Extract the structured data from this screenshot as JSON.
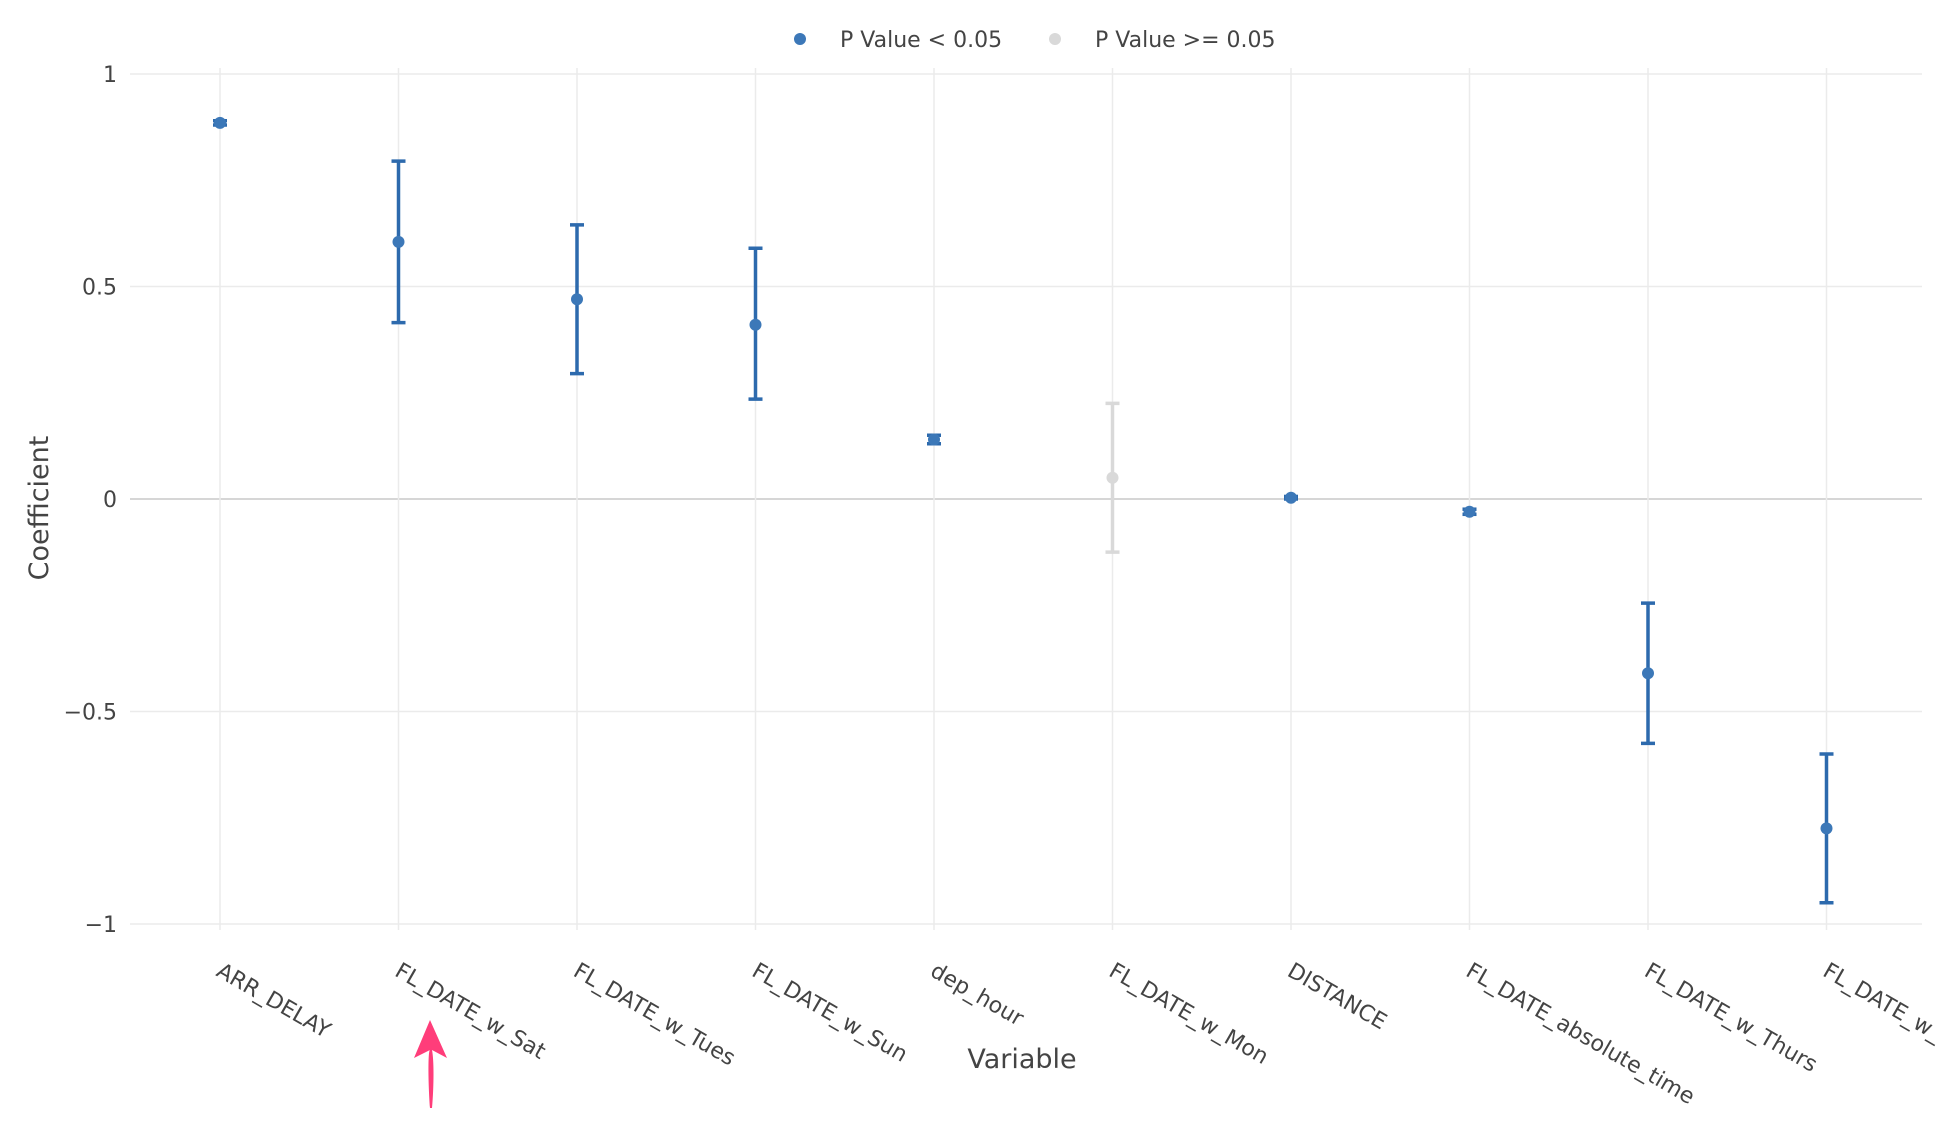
{
  "chart_data": {
    "type": "scatter",
    "xlabel": "Variable",
    "ylabel": "Coefficient",
    "ylim": [
      -1.05,
      1.02
    ],
    "yticks": [
      1,
      0.5,
      0,
      -0.5,
      -1
    ],
    "ytick_labels": [
      "1",
      "0.5",
      "0",
      "−0.5",
      "−1"
    ],
    "grid": true,
    "zero_line": true,
    "legend": {
      "position": "top-center",
      "entries": [
        {
          "label": "P Value < 0.05",
          "color": "#3c78b8"
        },
        {
          "label": "P Value >= 0.05",
          "color": "#d9d9d9"
        }
      ]
    },
    "categories": [
      "ARR_DELAY",
      "FL_DATE_w_Sat",
      "FL_DATE_w_Tues",
      "FL_DATE_w_Sun",
      "dep_hour",
      "FL_DATE_w_Mon",
      "DISTANCE",
      "FL_DATE_absolute_time",
      "FL_DATE_w_Thurs",
      "FL_DATE_w_"
    ],
    "points": [
      {
        "x": "ARR_DELAY",
        "y": 0.885,
        "low": 0.88,
        "high": 0.89,
        "significant": true
      },
      {
        "x": "FL_DATE_w_Sat",
        "y": 0.605,
        "low": 0.415,
        "high": 0.795,
        "significant": true
      },
      {
        "x": "FL_DATE_w_Tues",
        "y": 0.47,
        "low": 0.295,
        "high": 0.645,
        "significant": true
      },
      {
        "x": "FL_DATE_w_Sun",
        "y": 0.41,
        "low": 0.235,
        "high": 0.59,
        "significant": true
      },
      {
        "x": "dep_hour",
        "y": 0.14,
        "low": 0.13,
        "high": 0.15,
        "significant": true
      },
      {
        "x": "FL_DATE_w_Mon",
        "y": 0.05,
        "low": -0.125,
        "high": 0.225,
        "significant": false
      },
      {
        "x": "DISTANCE",
        "y": 0.003,
        "low": 0.0,
        "high": 0.006,
        "significant": true
      },
      {
        "x": "FL_DATE_absolute_time",
        "y": -0.03,
        "low": -0.036,
        "high": -0.024,
        "significant": true
      },
      {
        "x": "FL_DATE_w_Thurs",
        "y": -0.41,
        "low": -0.575,
        "high": -0.245,
        "significant": true
      },
      {
        "x": "FL_DATE_w_",
        "y": -0.775,
        "low": -0.95,
        "high": -0.6,
        "significant": true
      }
    ],
    "colors": {
      "significant_point": "#3c78b8",
      "significant_bar": "#2d6aad",
      "nonsignificant": "#d9d9d9",
      "grid": "#ebebeb",
      "zero_line": "#c8c8c8",
      "annotation_arrow": "#ff3d7a"
    }
  }
}
